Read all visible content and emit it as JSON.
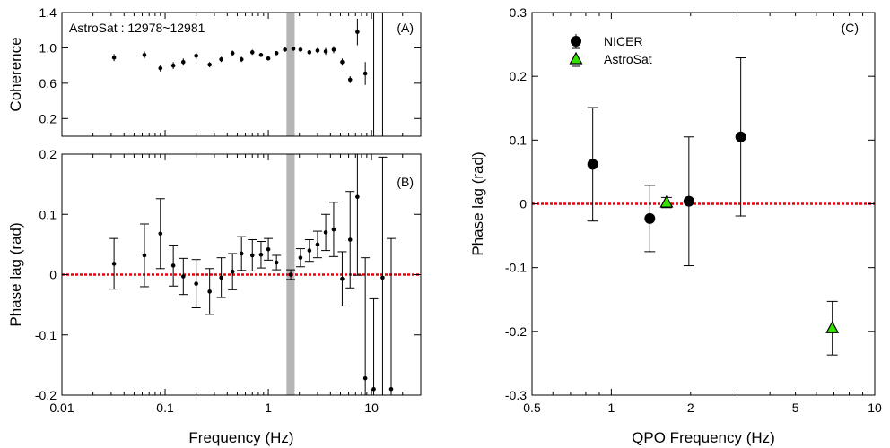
{
  "colors": {
    "errorbar": "#000000",
    "zero_line": "#e8000b",
    "band": "#b5b5b5",
    "astrosat_marker": "#33e000",
    "nicer_marker": "#000000"
  },
  "chart_data": [
    {
      "id": "A",
      "type": "scatter",
      "panel_label": "(A)",
      "annotation": "AstroSat : 12978~12981",
      "xlabel": "",
      "ylabel": "Coherence",
      "xscale": "log",
      "xlim": [
        0.01,
        30
      ],
      "ylim": [
        0,
        1.4
      ],
      "yticks": [
        "0.2",
        "0.6",
        "1.0",
        "1.4"
      ],
      "shaded_band_x": [
        1.5,
        1.8
      ],
      "points": [
        {
          "x": 0.032,
          "y": 0.89,
          "err": 0.04
        },
        {
          "x": 0.063,
          "y": 0.92,
          "err": 0.04
        },
        {
          "x": 0.09,
          "y": 0.77,
          "err": 0.04
        },
        {
          "x": 0.12,
          "y": 0.8,
          "err": 0.04
        },
        {
          "x": 0.15,
          "y": 0.84,
          "err": 0.04
        },
        {
          "x": 0.2,
          "y": 0.91,
          "err": 0.04
        },
        {
          "x": 0.27,
          "y": 0.81,
          "err": 0.03
        },
        {
          "x": 0.35,
          "y": 0.87,
          "err": 0.03
        },
        {
          "x": 0.45,
          "y": 0.94,
          "err": 0.03
        },
        {
          "x": 0.55,
          "y": 0.87,
          "err": 0.03
        },
        {
          "x": 0.7,
          "y": 0.95,
          "err": 0.03
        },
        {
          "x": 0.85,
          "y": 0.92,
          "err": 0.02
        },
        {
          "x": 1.0,
          "y": 0.88,
          "err": 0.02
        },
        {
          "x": 1.2,
          "y": 0.94,
          "err": 0.02
        },
        {
          "x": 1.45,
          "y": 0.98,
          "err": 0.02
        },
        {
          "x": 1.75,
          "y": 0.99,
          "err": 0.02
        },
        {
          "x": 2.05,
          "y": 0.98,
          "err": 0.02
        },
        {
          "x": 2.5,
          "y": 0.95,
          "err": 0.02
        },
        {
          "x": 3.0,
          "y": 0.97,
          "err": 0.03
        },
        {
          "x": 3.6,
          "y": 0.96,
          "err": 0.04
        },
        {
          "x": 4.3,
          "y": 0.98,
          "err": 0.04
        },
        {
          "x": 5.2,
          "y": 0.84,
          "err": 0.04
        },
        {
          "x": 6.2,
          "y": 0.64,
          "err": 0.04
        },
        {
          "x": 7.3,
          "y": 1.18,
          "err": 0.15
        },
        {
          "x": 8.7,
          "y": 0.71,
          "err": 0.13
        }
      ],
      "vertical_lines_x": [
        10.5,
        12.8
      ]
    },
    {
      "id": "B",
      "type": "scatter",
      "panel_label": "(B)",
      "xlabel": "Frequency (Hz)",
      "ylabel": "Phase lag (rad)",
      "xscale": "log",
      "xlim": [
        0.01,
        30
      ],
      "ylim": [
        -0.2,
        0.2
      ],
      "xticks": [
        "0.01",
        "0.1",
        "1",
        "10"
      ],
      "yticks": [
        "-0.2",
        "-0.1",
        "0",
        "0.1",
        "0.2"
      ],
      "zero_line": 0,
      "shaded_band_x": [
        1.5,
        1.8
      ],
      "points": [
        {
          "x": 0.032,
          "y": 0.018,
          "err": 0.042
        },
        {
          "x": 0.063,
          "y": 0.032,
          "err": 0.052
        },
        {
          "x": 0.09,
          "y": 0.068,
          "err": 0.058
        },
        {
          "x": 0.12,
          "y": 0.015,
          "err": 0.034
        },
        {
          "x": 0.15,
          "y": -0.003,
          "err": 0.03
        },
        {
          "x": 0.2,
          "y": -0.015,
          "err": 0.04
        },
        {
          "x": 0.27,
          "y": -0.028,
          "err": 0.038
        },
        {
          "x": 0.35,
          "y": -0.005,
          "err": 0.033
        },
        {
          "x": 0.45,
          "y": 0.005,
          "err": 0.03
        },
        {
          "x": 0.55,
          "y": 0.035,
          "err": 0.028
        },
        {
          "x": 0.7,
          "y": 0.032,
          "err": 0.026
        },
        {
          "x": 0.85,
          "y": 0.033,
          "err": 0.022
        },
        {
          "x": 1.0,
          "y": 0.042,
          "err": 0.018
        },
        {
          "x": 1.2,
          "y": 0.02,
          "err": 0.012
        },
        {
          "x": 1.65,
          "y": 0.0,
          "err": 0.008
        },
        {
          "x": 2.05,
          "y": 0.028,
          "err": 0.015
        },
        {
          "x": 2.5,
          "y": 0.04,
          "err": 0.018
        },
        {
          "x": 3.0,
          "y": 0.05,
          "err": 0.022
        },
        {
          "x": 3.6,
          "y": 0.07,
          "err": 0.03
        },
        {
          "x": 4.3,
          "y": 0.075,
          "err": 0.045
        },
        {
          "x": 5.2,
          "y": -0.007,
          "err": 0.045
        },
        {
          "x": 6.2,
          "y": 0.058,
          "err": 0.08
        },
        {
          "x": 7.3,
          "y": 0.129,
          "err": 0.13
        },
        {
          "x": 8.7,
          "y": -0.172,
          "err": 0.2
        },
        {
          "x": 10.5,
          "y": -0.19,
          "err": 0.15
        },
        {
          "x": 12.8,
          "y": -0.005,
          "err": 0.2
        },
        {
          "x": 15.5,
          "y": -0.19,
          "err": 0.25
        }
      ]
    },
    {
      "id": "C",
      "type": "scatter",
      "panel_label": "(C)",
      "xlabel": "QPO Frequency (Hz)",
      "ylabel": "Phase lag (rad)",
      "xscale": "log",
      "xlim": [
        0.5,
        10
      ],
      "ylim": [
        -0.3,
        0.3
      ],
      "xticks": [
        "0.5",
        "1",
        "2",
        "5",
        "10"
      ],
      "yticks": [
        "-0.3",
        "-0.2",
        "-0.1",
        "0",
        "0.1",
        "0.2",
        "0.3"
      ],
      "zero_line": 0,
      "series": [
        {
          "name": "NICER",
          "marker": "circle",
          "points": [
            {
              "x": 0.85,
              "y": 0.062,
              "err": 0.089
            },
            {
              "x": 1.4,
              "y": -0.023,
              "err": 0.052
            },
            {
              "x": 1.97,
              "y": 0.004,
              "err": 0.101
            },
            {
              "x": 3.1,
              "y": 0.105,
              "err": 0.124
            }
          ]
        },
        {
          "name": "AstroSat",
          "marker": "triangle",
          "points": [
            {
              "x": 1.62,
              "y": 0.002,
              "err": 0.008
            },
            {
              "x": 6.9,
              "y": -0.195,
              "err": 0.042
            }
          ]
        }
      ],
      "legend_position": "top-left"
    }
  ]
}
